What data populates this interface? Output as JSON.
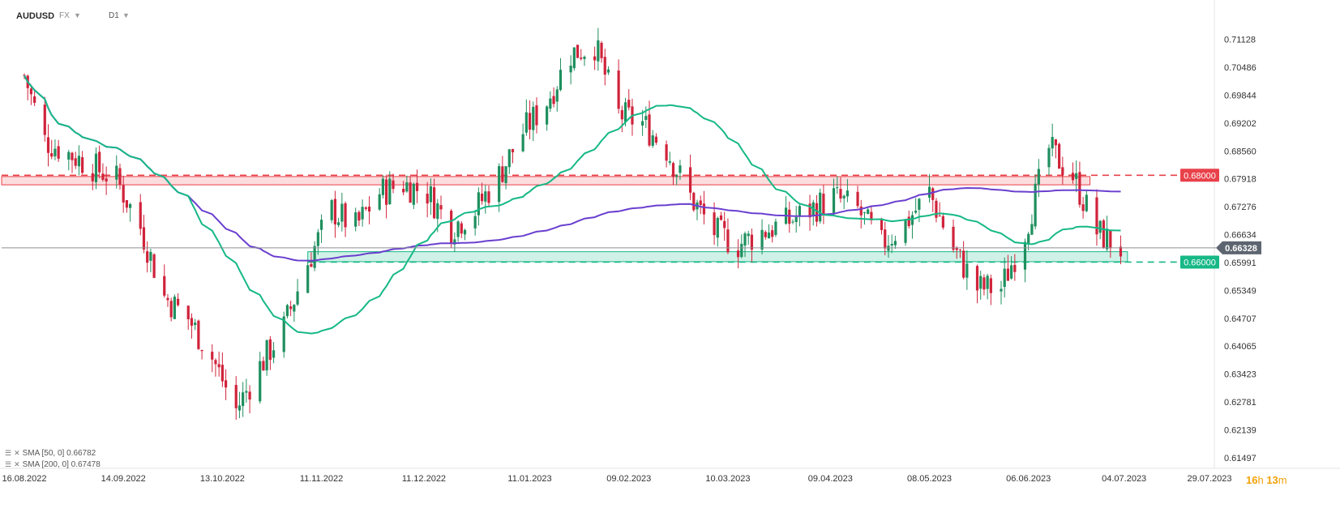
{
  "header": {
    "symbol": "AUDUSD",
    "market": "FX",
    "timeframe": "D1"
  },
  "indicators": [
    {
      "label": "SMA [50, 0] 0.66782",
      "color": "#16b886"
    },
    {
      "label": "SMA [200, 0] 0.67478",
      "color": "#6a3fcf"
    }
  ],
  "countdown": {
    "hours": "16",
    "h": "h",
    "minutes": "13",
    "m": "m"
  },
  "colors": {
    "up": "#1e8f5e",
    "down": "#d0233b",
    "sma50": "#16b886",
    "sma200": "#6a3fcf",
    "resistance": "#e8414a",
    "support": "#16b886",
    "price_label": "#5d6570"
  },
  "chart_data": {
    "type": "candlestick",
    "symbol": "AUDUSD",
    "timeframe": "D1",
    "y_ticks": [
      "0.71128",
      "0.70486",
      "0.69844",
      "0.69202",
      "0.68560",
      "0.67918",
      "0.67276",
      "0.66634",
      "0.65991",
      "0.65349",
      "0.64707",
      "0.64065",
      "0.63423",
      "0.62781",
      "0.62139",
      "0.61497"
    ],
    "x_ticks": [
      "16.08.2022",
      "14.09.2022",
      "13.10.2022",
      "11.11.2022",
      "11.12.2022",
      "11.01.2023",
      "09.02.2023",
      "10.03.2023",
      "09.04.2023",
      "08.05.2023",
      "06.06.2023",
      "04.07.2023",
      "29.07.2023"
    ],
    "ylim": [
      0.6125,
      0.7185
    ],
    "current_price": {
      "value": 0.66328,
      "label": "0.66328"
    },
    "levels": [
      {
        "value": 0.68,
        "label": "0.68000",
        "color": "#e8414a",
        "zone": [
          0.6778,
          0.6797
        ]
      },
      {
        "value": 0.66,
        "label": "0.66000",
        "color": "#16b886",
        "zone": [
          0.6601,
          0.6624
        ]
      }
    ],
    "sma50": {
      "label": "SMA [50, 0]",
      "value": 0.66782
    },
    "sma200": {
      "label": "SMA [200, 0]",
      "value": 0.67478
    },
    "close_path": [
      [
        "2022-08-16",
        0.703
      ],
      [
        "2022-08-22",
        0.688
      ],
      [
        "2022-08-29",
        0.685
      ],
      [
        "2022-09-05",
        0.682
      ],
      [
        "2022-09-12",
        0.679
      ],
      [
        "2022-09-19",
        0.668
      ],
      [
        "2022-09-26",
        0.652
      ],
      [
        "2022-10-03",
        0.647
      ],
      [
        "2022-10-10",
        0.638
      ],
      [
        "2022-10-17",
        0.626
      ],
      [
        "2022-10-24",
        0.636
      ],
      [
        "2022-10-31",
        0.645
      ],
      [
        "2022-11-07",
        0.66
      ],
      [
        "2022-11-14",
        0.672
      ],
      [
        "2022-11-21",
        0.668
      ],
      [
        "2022-11-28",
        0.676
      ],
      [
        "2022-12-05",
        0.678
      ],
      [
        "2022-12-12",
        0.676
      ],
      [
        "2022-12-19",
        0.668
      ],
      [
        "2022-12-26",
        0.672
      ],
      [
        "2023-01-02",
        0.68
      ],
      [
        "2023-01-09",
        0.69
      ],
      [
        "2023-01-16",
        0.697
      ],
      [
        "2023-01-23",
        0.708
      ],
      [
        "2023-01-30",
        0.71
      ],
      [
        "2023-02-06",
        0.694
      ],
      [
        "2023-02-13",
        0.692
      ],
      [
        "2023-02-20",
        0.686
      ],
      [
        "2023-02-27",
        0.675
      ],
      [
        "2023-03-06",
        0.667
      ],
      [
        "2023-03-13",
        0.664
      ],
      [
        "2023-03-20",
        0.667
      ],
      [
        "2023-03-27",
        0.669
      ],
      [
        "2023-04-03",
        0.672
      ],
      [
        "2023-04-10",
        0.675
      ],
      [
        "2023-04-17",
        0.672
      ],
      [
        "2023-04-24",
        0.664
      ],
      [
        "2023-05-01",
        0.669
      ],
      [
        "2023-05-08",
        0.676
      ],
      [
        "2023-05-15",
        0.663
      ],
      [
        "2023-05-22",
        0.654
      ],
      [
        "2023-05-29",
        0.654
      ],
      [
        "2023-06-05",
        0.667
      ],
      [
        "2023-06-12",
        0.686
      ],
      [
        "2023-06-19",
        0.68
      ],
      [
        "2023-06-26",
        0.667
      ],
      [
        "2023-07-03",
        0.663
      ]
    ]
  }
}
